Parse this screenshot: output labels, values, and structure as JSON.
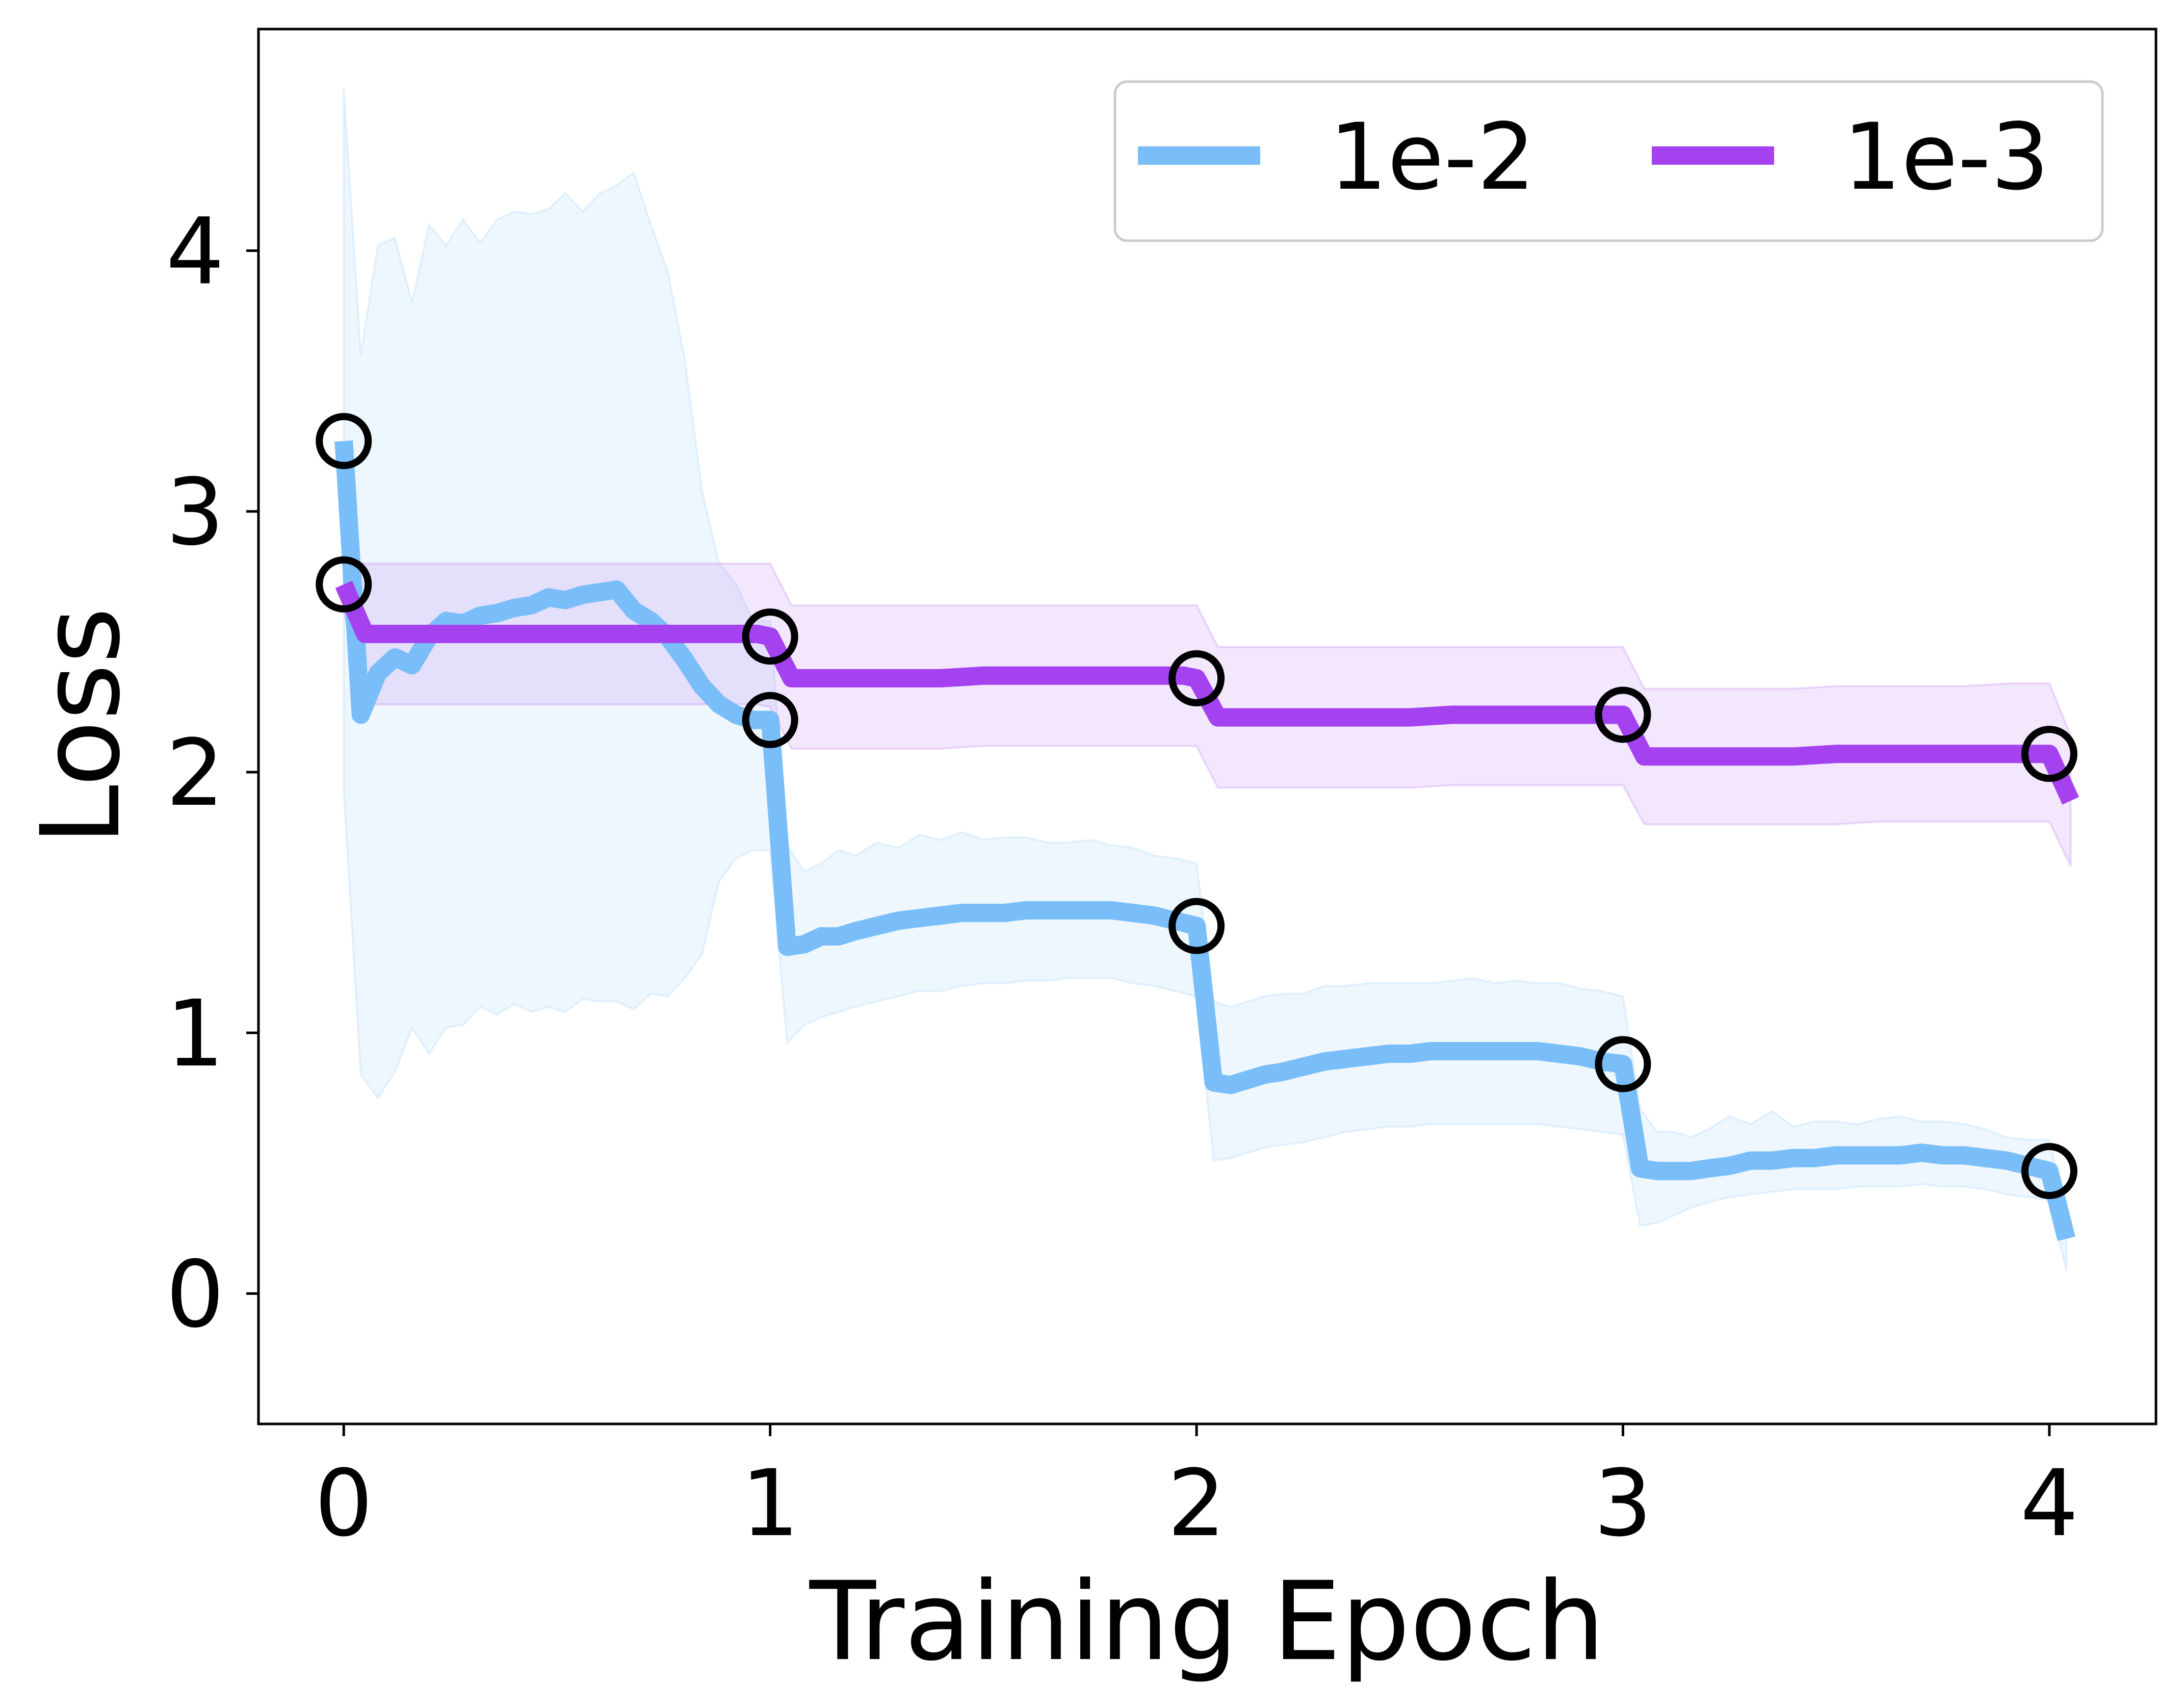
{
  "chart_data": {
    "type": "line",
    "title": "",
    "xlabel": "Training Epoch",
    "ylabel": "Loss",
    "xlim": [
      -0.2,
      4.25
    ],
    "ylim": [
      -0.5,
      4.85
    ],
    "xticks": [
      0,
      1,
      2,
      3,
      4
    ],
    "yticks": [
      0,
      1,
      2,
      3,
      4
    ],
    "grid": false,
    "legend_position": "top-right",
    "legend_columns": 2,
    "series": [
      {
        "name": "1e-2",
        "color": "#79bef8",
        "x": [
          0.0,
          0.04,
          0.08,
          0.12,
          0.16,
          0.2,
          0.24,
          0.28,
          0.32,
          0.36,
          0.4,
          0.44,
          0.48,
          0.52,
          0.56,
          0.6,
          0.64,
          0.68,
          0.72,
          0.76,
          0.8,
          0.84,
          0.88,
          0.92,
          0.96,
          1.0,
          1.04,
          1.08,
          1.12,
          1.16,
          1.2,
          1.25,
          1.3,
          1.35,
          1.4,
          1.45,
          1.5,
          1.55,
          1.6,
          1.65,
          1.7,
          1.75,
          1.8,
          1.85,
          1.9,
          1.95,
          2.0,
          2.04,
          2.08,
          2.12,
          2.16,
          2.2,
          2.25,
          2.3,
          2.35,
          2.4,
          2.45,
          2.5,
          2.55,
          2.6,
          2.65,
          2.7,
          2.75,
          2.8,
          2.85,
          2.9,
          2.95,
          3.0,
          3.04,
          3.08,
          3.12,
          3.16,
          3.2,
          3.25,
          3.3,
          3.35,
          3.4,
          3.45,
          3.5,
          3.55,
          3.6,
          3.65,
          3.7,
          3.75,
          3.8,
          3.85,
          3.9,
          3.95,
          4.0,
          4.04
        ],
        "y": [
          3.27,
          2.22,
          2.38,
          2.44,
          2.41,
          2.52,
          2.58,
          2.57,
          2.6,
          2.61,
          2.63,
          2.64,
          2.67,
          2.66,
          2.68,
          2.69,
          2.7,
          2.62,
          2.58,
          2.52,
          2.43,
          2.33,
          2.26,
          2.22,
          2.2,
          2.2,
          1.33,
          1.34,
          1.37,
          1.37,
          1.39,
          1.41,
          1.43,
          1.44,
          1.45,
          1.46,
          1.46,
          1.46,
          1.47,
          1.47,
          1.47,
          1.47,
          1.47,
          1.46,
          1.45,
          1.43,
          1.41,
          0.81,
          0.8,
          0.82,
          0.84,
          0.85,
          0.87,
          0.89,
          0.9,
          0.91,
          0.92,
          0.92,
          0.93,
          0.93,
          0.93,
          0.93,
          0.93,
          0.93,
          0.92,
          0.91,
          0.89,
          0.88,
          0.48,
          0.47,
          0.47,
          0.47,
          0.48,
          0.49,
          0.51,
          0.51,
          0.52,
          0.52,
          0.53,
          0.53,
          0.53,
          0.53,
          0.54,
          0.53,
          0.53,
          0.52,
          0.51,
          0.49,
          0.47,
          0.21
        ],
        "upper": [
          4.62,
          3.6,
          4.02,
          4.05,
          3.8,
          4.1,
          4.02,
          4.12,
          4.03,
          4.12,
          4.15,
          4.14,
          4.16,
          4.22,
          4.15,
          4.22,
          4.25,
          4.3,
          4.1,
          3.92,
          3.58,
          3.08,
          2.8,
          2.72,
          2.58,
          2.58,
          1.72,
          1.62,
          1.65,
          1.7,
          1.68,
          1.73,
          1.71,
          1.76,
          1.74,
          1.77,
          1.74,
          1.75,
          1.75,
          1.73,
          1.73,
          1.74,
          1.72,
          1.71,
          1.68,
          1.67,
          1.65,
          1.12,
          1.1,
          1.12,
          1.14,
          1.15,
          1.15,
          1.18,
          1.18,
          1.19,
          1.19,
          1.19,
          1.19,
          1.2,
          1.21,
          1.19,
          1.2,
          1.19,
          1.19,
          1.17,
          1.16,
          1.14,
          0.71,
          0.62,
          0.62,
          0.6,
          0.63,
          0.68,
          0.65,
          0.7,
          0.64,
          0.66,
          0.66,
          0.65,
          0.67,
          0.68,
          0.66,
          0.66,
          0.65,
          0.63,
          0.6,
          0.59,
          0.59,
          0.31
        ],
        "lower": [
          1.93,
          0.84,
          0.75,
          0.85,
          1.02,
          0.92,
          1.02,
          1.03,
          1.1,
          1.07,
          1.11,
          1.08,
          1.1,
          1.08,
          1.13,
          1.12,
          1.12,
          1.09,
          1.15,
          1.14,
          1.21,
          1.3,
          1.58,
          1.67,
          1.7,
          1.7,
          0.96,
          1.03,
          1.06,
          1.08,
          1.1,
          1.12,
          1.14,
          1.16,
          1.16,
          1.18,
          1.19,
          1.19,
          1.2,
          1.2,
          1.21,
          1.21,
          1.21,
          1.19,
          1.18,
          1.16,
          1.14,
          0.51,
          0.52,
          0.54,
          0.56,
          0.57,
          0.58,
          0.6,
          0.62,
          0.63,
          0.64,
          0.64,
          0.65,
          0.65,
          0.65,
          0.65,
          0.65,
          0.65,
          0.64,
          0.63,
          0.62,
          0.61,
          0.26,
          0.27,
          0.3,
          0.33,
          0.35,
          0.37,
          0.38,
          0.39,
          0.4,
          0.4,
          0.4,
          0.41,
          0.41,
          0.41,
          0.42,
          0.41,
          0.41,
          0.4,
          0.38,
          0.37,
          0.36,
          0.09
        ],
        "markers": [
          [
            0,
            3.27
          ],
          [
            1,
            2.2
          ],
          [
            2,
            1.41
          ],
          [
            3,
            0.88
          ],
          [
            4,
            0.47
          ]
        ]
      },
      {
        "name": "1e-3",
        "color": "#a442f0",
        "x": [
          0.0,
          0.05,
          0.1,
          0.2,
          0.3,
          0.4,
          0.5,
          0.6,
          0.7,
          0.8,
          0.9,
          0.97,
          1.0,
          1.05,
          1.1,
          1.2,
          1.3,
          1.4,
          1.5,
          1.6,
          1.7,
          1.8,
          1.9,
          1.97,
          2.0,
          2.05,
          2.1,
          2.2,
          2.3,
          2.4,
          2.5,
          2.6,
          2.7,
          2.8,
          2.9,
          2.97,
          3.0,
          3.05,
          3.1,
          3.2,
          3.3,
          3.4,
          3.5,
          3.6,
          3.7,
          3.8,
          3.9,
          3.97,
          4.0,
          4.05
        ],
        "y": [
          2.72,
          2.53,
          2.53,
          2.53,
          2.53,
          2.53,
          2.53,
          2.53,
          2.53,
          2.53,
          2.53,
          2.53,
          2.52,
          2.36,
          2.36,
          2.36,
          2.36,
          2.36,
          2.37,
          2.37,
          2.37,
          2.37,
          2.37,
          2.37,
          2.36,
          2.21,
          2.21,
          2.21,
          2.21,
          2.21,
          2.21,
          2.22,
          2.22,
          2.22,
          2.22,
          2.22,
          2.22,
          2.06,
          2.06,
          2.06,
          2.06,
          2.06,
          2.07,
          2.07,
          2.07,
          2.07,
          2.07,
          2.07,
          2.07,
          1.89
        ],
        "upper": [
          2.82,
          2.8,
          2.8,
          2.8,
          2.8,
          2.8,
          2.8,
          2.8,
          2.8,
          2.8,
          2.8,
          2.8,
          2.8,
          2.64,
          2.64,
          2.64,
          2.64,
          2.64,
          2.64,
          2.64,
          2.64,
          2.64,
          2.64,
          2.64,
          2.64,
          2.48,
          2.48,
          2.48,
          2.48,
          2.48,
          2.48,
          2.48,
          2.48,
          2.48,
          2.48,
          2.48,
          2.48,
          2.32,
          2.32,
          2.32,
          2.32,
          2.32,
          2.33,
          2.33,
          2.33,
          2.33,
          2.34,
          2.34,
          2.34,
          2.14
        ],
        "lower": [
          2.62,
          2.26,
          2.26,
          2.26,
          2.26,
          2.26,
          2.26,
          2.26,
          2.26,
          2.26,
          2.26,
          2.26,
          2.25,
          2.09,
          2.09,
          2.09,
          2.09,
          2.09,
          2.1,
          2.1,
          2.1,
          2.1,
          2.1,
          2.1,
          2.1,
          1.94,
          1.94,
          1.94,
          1.94,
          1.94,
          1.94,
          1.95,
          1.95,
          1.95,
          1.95,
          1.95,
          1.95,
          1.8,
          1.8,
          1.8,
          1.8,
          1.8,
          1.8,
          1.81,
          1.81,
          1.81,
          1.81,
          1.81,
          1.81,
          1.64
        ],
        "markers": [
          [
            0,
            2.72
          ],
          [
            1,
            2.52
          ],
          [
            2,
            2.36
          ],
          [
            3,
            2.22
          ],
          [
            4,
            2.07
          ]
        ]
      }
    ]
  }
}
